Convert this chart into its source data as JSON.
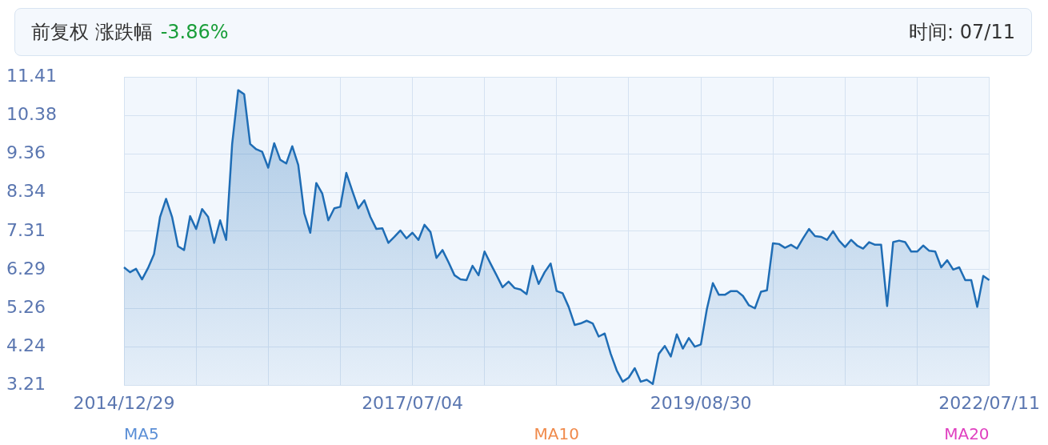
{
  "chart_data": {
    "type": "area",
    "title": "前复权 涨跌幅",
    "subtitle": "-3.86%",
    "annotations": [
      "时间: 07/11",
      "MA5",
      "MA10",
      "MA20"
    ],
    "categories": [
      "2014/12/29",
      null,
      null,
      null,
      null,
      null,
      null,
      null,
      null,
      null,
      null,
      null,
      null,
      null,
      null,
      null,
      null,
      null,
      null,
      null,
      null,
      null,
      null,
      null,
      null,
      null,
      null,
      null,
      null,
      null,
      null,
      null,
      null,
      null,
      null,
      null,
      null,
      null,
      null,
      null,
      null,
      null,
      null,
      null,
      null,
      null,
      null,
      null,
      "2017/07/04",
      null,
      null,
      null,
      null,
      null,
      null,
      null,
      null,
      null,
      null,
      null,
      null,
      null,
      null,
      null,
      null,
      null,
      null,
      null,
      null,
      null,
      null,
      null,
      null,
      null,
      null,
      null,
      null,
      null,
      null,
      null,
      null,
      null,
      null,
      null,
      null,
      null,
      null,
      null,
      null,
      null,
      null,
      null,
      null,
      null,
      null,
      null,
      "2019/08/30",
      null,
      null,
      null,
      null,
      null,
      null,
      null,
      null,
      null,
      null,
      null,
      null,
      null,
      null,
      null,
      null,
      null,
      null,
      null,
      null,
      null,
      null,
      null,
      null,
      null,
      null,
      null,
      null,
      null,
      null,
      null,
      null,
      null,
      null,
      null,
      null,
      null,
      null,
      null,
      null,
      null,
      null,
      null,
      null,
      null,
      null,
      null,
      "2022/07/11"
    ],
    "ylim": [
      3.21,
      11.41
    ],
    "yticks": [
      3.21,
      4.24,
      5.26,
      6.29,
      7.31,
      8.34,
      9.36,
      10.38,
      11.41
    ],
    "grid": true,
    "legend": false,
    "marker": "none",
    "line_style": "solid",
    "series": [
      {
        "color": "#1f6db5",
        "values": [
          6.35,
          6.22,
          6.31,
          6.03,
          6.33,
          6.7,
          7.69,
          8.17,
          7.69,
          6.91,
          6.81,
          7.71,
          7.37,
          7.9,
          7.69,
          7.0,
          7.6,
          7.08,
          9.63,
          11.06,
          10.95,
          9.63,
          9.49,
          9.42,
          9.0,
          9.65,
          9.21,
          9.11,
          9.57,
          9.07,
          7.79,
          7.27,
          8.59,
          8.31,
          7.6,
          7.92,
          7.96,
          8.86,
          8.38,
          7.92,
          8.13,
          7.69,
          7.37,
          7.39,
          7.0,
          7.16,
          7.33,
          7.12,
          7.27,
          7.08,
          7.48,
          7.29,
          6.6,
          6.81,
          6.49,
          6.14,
          6.03,
          6.01,
          6.39,
          6.14,
          6.77,
          6.45,
          6.14,
          5.82,
          5.97,
          5.8,
          5.76,
          5.64,
          6.39,
          5.91,
          6.22,
          6.45,
          5.72,
          5.66,
          5.3,
          4.82,
          4.86,
          4.93,
          4.86,
          4.51,
          4.59,
          4.05,
          3.61,
          3.31,
          3.42,
          3.67,
          3.31,
          3.36,
          3.25,
          4.05,
          4.26,
          3.98,
          4.57,
          4.19,
          4.47,
          4.24,
          4.3,
          5.24,
          5.93,
          5.62,
          5.62,
          5.72,
          5.72,
          5.59,
          5.34,
          5.26,
          5.7,
          5.74,
          6.99,
          6.97,
          6.87,
          6.95,
          6.85,
          7.12,
          7.37,
          7.18,
          7.16,
          7.08,
          7.31,
          7.06,
          6.89,
          7.08,
          6.93,
          6.85,
          7.02,
          6.95,
          6.95,
          5.32,
          7.02,
          7.06,
          7.02,
          6.77,
          6.77,
          6.93,
          6.79,
          6.77,
          6.35,
          6.54,
          6.29,
          6.35,
          6.01,
          6.01,
          5.3,
          6.12,
          6.01
        ]
      }
    ]
  }
}
